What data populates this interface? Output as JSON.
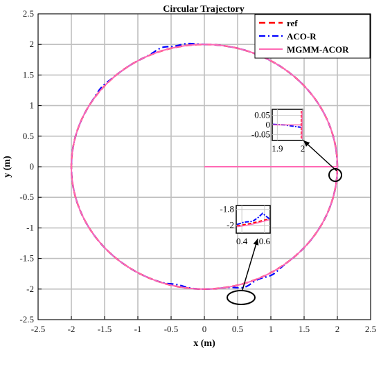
{
  "chart_data": {
    "type": "line",
    "title": "Circular Trajectory",
    "xlabel": "x (m)",
    "ylabel": "y (m)",
    "xlim": [
      -2.5,
      2.5
    ],
    "ylim": [
      -2.5,
      2.5
    ],
    "xticks": [
      -2.5,
      -2,
      -1.5,
      -1,
      -0.5,
      0,
      0.5,
      1,
      1.5,
      2,
      2.5
    ],
    "yticks": [
      -2.5,
      -2,
      -1.5,
      -1,
      -0.5,
      0,
      0.5,
      1,
      1.5,
      2,
      2.5
    ],
    "xtick_labels": [
      "-2.5",
      "-2",
      "-1.5",
      "-1",
      "-0.5",
      "0",
      "0.5",
      "1",
      "1.5",
      "2",
      "2.5"
    ],
    "ytick_labels": [
      "-2.5",
      "-2",
      "-1.5",
      "-1",
      "-0.5",
      "0",
      "0.5",
      "1",
      "1.5",
      "2",
      "2.5"
    ],
    "grid": true,
    "legend_position": "top-right",
    "series": [
      {
        "name": "ref",
        "color": "#ff0000",
        "style": "dashed",
        "description": "circle of radius 2 centred at origin",
        "radius": 2
      },
      {
        "name": "ACO-R",
        "color": "#0000ff",
        "style": "dash-dot",
        "radius": 2,
        "perturbations": [
          {
            "angle_deg": 108,
            "amplitude": 0.05
          },
          {
            "angle_deg": 98,
            "amplitude": 0.03
          },
          {
            "angle_deg": 140,
            "amplitude": 0.02
          },
          {
            "angle_deg": 300,
            "amplitude": 0.04
          },
          {
            "angle_deg": 287,
            "amplitude": 0.06
          },
          {
            "angle_deg": 258,
            "amplitude": -0.03
          }
        ]
      },
      {
        "name": "MGMM-ACOR",
        "color": "#ff69b4",
        "style": "solid",
        "radius": 2,
        "start_segment": {
          "x": [
            0,
            2
          ],
          "y": [
            0,
            0
          ]
        }
      }
    ],
    "insets": [
      {
        "xticks": [
          "1.9",
          "2"
        ],
        "yticks": [
          "0.05",
          "0",
          "-0.05"
        ],
        "xlim": [
          1.88,
          2.0
        ],
        "ylim": [
          -0.08,
          0.08
        ],
        "ellipse_center": [
          1.98,
          0.0
        ]
      },
      {
        "xticks": [
          "0.4",
          "0.6"
        ],
        "yticks": [
          "-1.8",
          "-2"
        ],
        "xlim": [
          0.35,
          0.65
        ],
        "ylim": [
          -2.1,
          -1.75
        ],
        "ellipse_center": [
          0.55,
          -1.96
        ]
      }
    ]
  }
}
